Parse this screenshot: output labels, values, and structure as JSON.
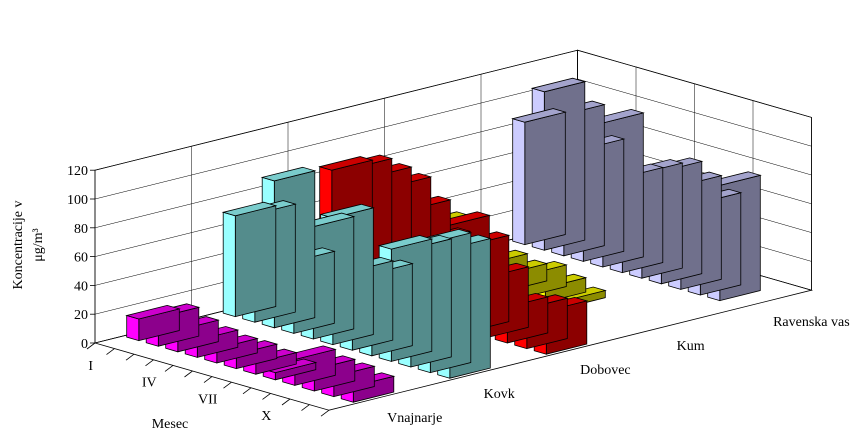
{
  "chart_data": {
    "type": "bar",
    "subtype": "3d-column",
    "ylabel": "Koncentracije v",
    "ylabel_unit": "μg/m³",
    "xlabel": "Mesec",
    "ylim": [
      0,
      120
    ],
    "yticks": [
      0,
      20,
      40,
      60,
      80,
      100,
      120
    ],
    "month_tick_labels": [
      {
        "index": 0,
        "label": "I"
      },
      {
        "index": 3,
        "label": "IV"
      },
      {
        "index": 6,
        "label": "VII"
      },
      {
        "index": 9,
        "label": "X"
      }
    ],
    "series": [
      {
        "name": "Vnajnarje",
        "color": "#ff00ff",
        "values": [
          15,
          20,
          15,
          12,
          10,
          10,
          8,
          5,
          18,
          15,
          14,
          11
        ]
      },
      {
        "name": "Kovk",
        "color": "#99ffff",
        "values": [
          70,
          75,
          102,
          50,
          78,
          88,
          55,
          57,
          78,
          82,
          90,
          90
        ]
      },
      {
        "name": "Dobovec",
        "color": "#ff0000",
        "values": [
          85,
          90,
          88,
          85,
          73,
          55,
          70,
          60,
          42,
          25,
          28,
          30
        ]
      },
      {
        "name": "Kum",
        "color": "#ffff00",
        "values": [
          30,
          18,
          12,
          15,
          12,
          15,
          10,
          5
        ]
      },
      {
        "name": "Ravenska vas",
        "color": "#ccccff",
        "values": [
          85,
          110,
          98,
          78,
          100,
          66,
          73,
          78,
          72,
          64,
          80
        ]
      }
    ],
    "grid": true,
    "legend": "depth-axis labels"
  }
}
